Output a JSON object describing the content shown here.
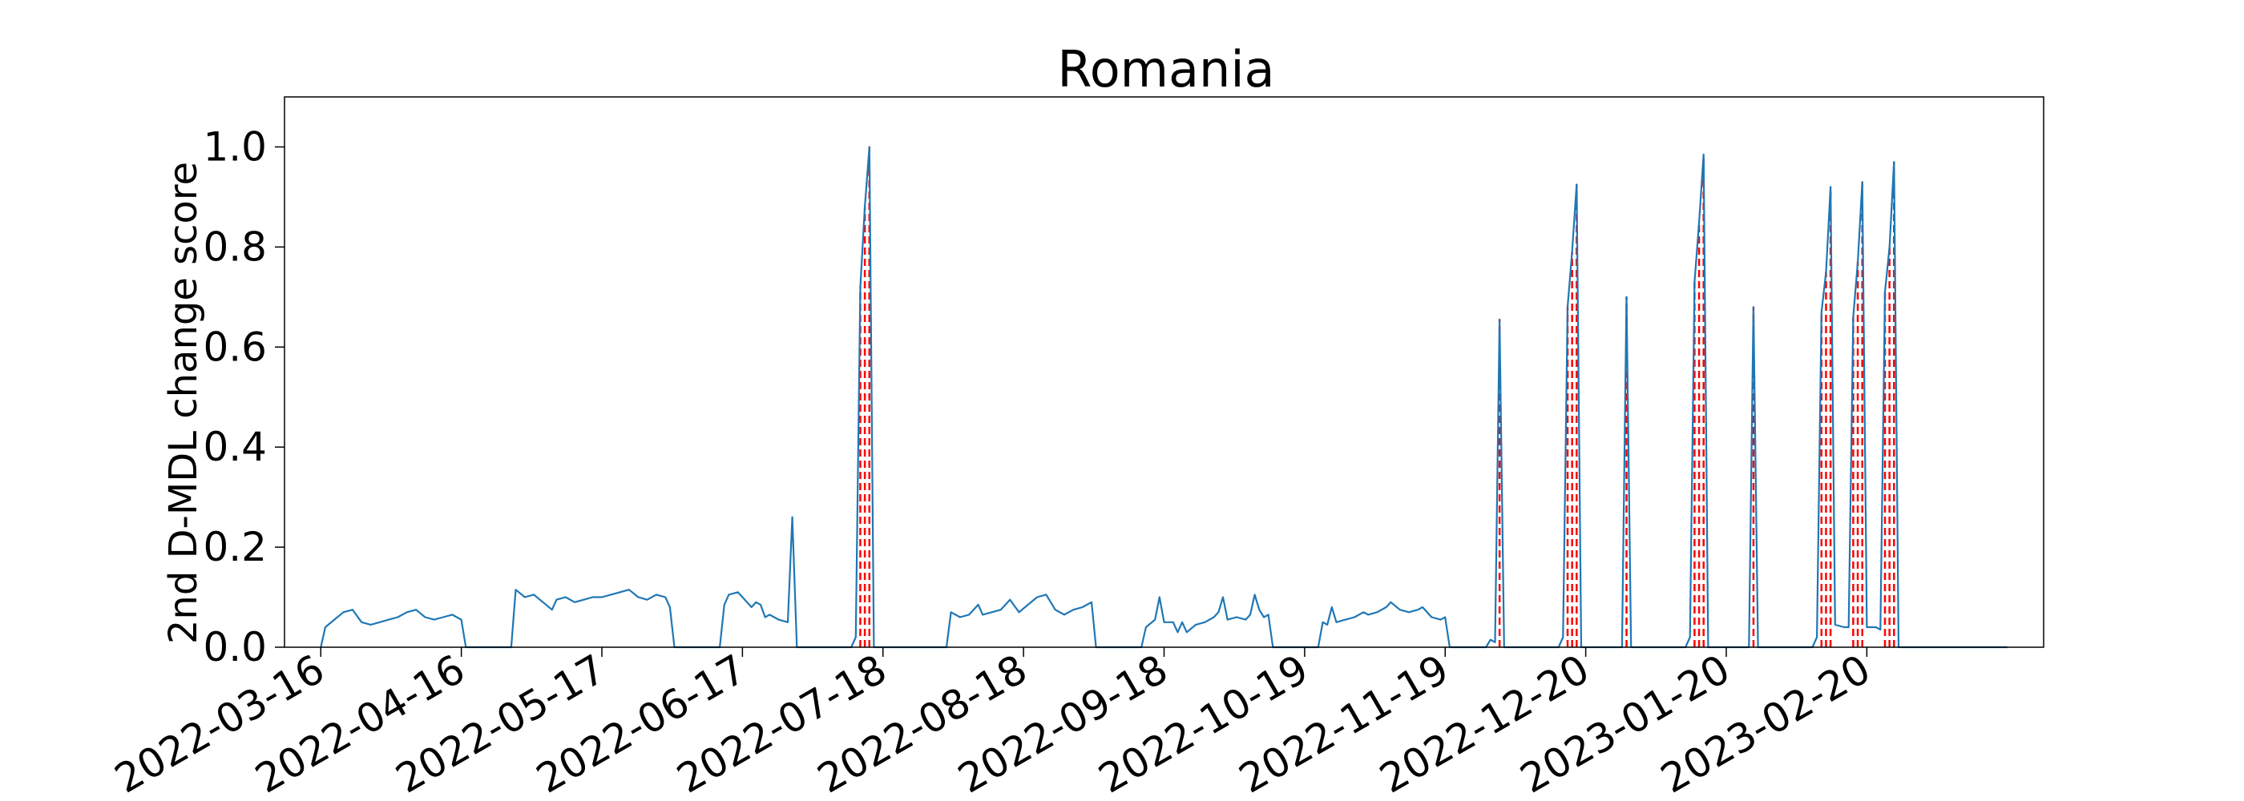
{
  "chart_data": {
    "type": "line",
    "title": "Romania",
    "xlabel": "",
    "ylabel": "2nd D-MDL change score",
    "ylim": [
      0.0,
      1.1
    ],
    "yticks": [
      0.0,
      0.2,
      0.4,
      0.6,
      0.8,
      1.0
    ],
    "ytick_labels": [
      "0.0",
      "0.2",
      "0.4",
      "0.6",
      "0.8",
      "1.0"
    ],
    "xlim": [
      "2022-03-08",
      "2023-03-31"
    ],
    "xticks": [
      "2022-03-16",
      "2022-04-16",
      "2022-05-17",
      "2022-06-17",
      "2022-07-18",
      "2022-08-18",
      "2022-09-18",
      "2022-10-19",
      "2022-11-19",
      "2022-12-20",
      "2023-01-20",
      "2023-02-20"
    ],
    "grid": false,
    "line_color": "#1f77b4",
    "alarm_color": "#ff0000",
    "series": [
      {
        "values": [
          [
            "2022-03-16",
            0.0
          ],
          [
            "2022-03-17",
            0.04
          ],
          [
            "2022-03-19",
            0.055
          ],
          [
            "2022-03-21",
            0.07
          ],
          [
            "2022-03-23",
            0.075
          ],
          [
            "2022-03-25",
            0.05
          ],
          [
            "2022-03-27",
            0.045
          ],
          [
            "2022-03-29",
            0.05
          ],
          [
            "2022-03-31",
            0.055
          ],
          [
            "2022-04-02",
            0.06
          ],
          [
            "2022-04-04",
            0.07
          ],
          [
            "2022-04-06",
            0.075
          ],
          [
            "2022-04-08",
            0.06
          ],
          [
            "2022-04-10",
            0.055
          ],
          [
            "2022-04-12",
            0.06
          ],
          [
            "2022-04-14",
            0.065
          ],
          [
            "2022-04-16",
            0.055
          ],
          [
            "2022-04-17",
            0.0
          ],
          [
            "2022-04-27",
            0.0
          ],
          [
            "2022-04-28",
            0.115
          ],
          [
            "2022-04-30",
            0.1
          ],
          [
            "2022-05-02",
            0.105
          ],
          [
            "2022-05-04",
            0.09
          ],
          [
            "2022-05-06",
            0.075
          ],
          [
            "2022-05-07",
            0.095
          ],
          [
            "2022-05-09",
            0.1
          ],
          [
            "2022-05-11",
            0.09
          ],
          [
            "2022-05-13",
            0.095
          ],
          [
            "2022-05-15",
            0.1
          ],
          [
            "2022-05-17",
            0.1
          ],
          [
            "2022-05-19",
            0.105
          ],
          [
            "2022-05-21",
            0.11
          ],
          [
            "2022-05-23",
            0.115
          ],
          [
            "2022-05-25",
            0.1
          ],
          [
            "2022-05-27",
            0.095
          ],
          [
            "2022-05-29",
            0.105
          ],
          [
            "2022-05-31",
            0.1
          ],
          [
            "2022-06-01",
            0.08
          ],
          [
            "2022-06-02",
            0.0
          ],
          [
            "2022-06-12",
            0.0
          ],
          [
            "2022-06-13",
            0.085
          ],
          [
            "2022-06-14",
            0.105
          ],
          [
            "2022-06-16",
            0.11
          ],
          [
            "2022-06-17",
            0.1
          ],
          [
            "2022-06-19",
            0.08
          ],
          [
            "2022-06-20",
            0.09
          ],
          [
            "2022-06-21",
            0.085
          ],
          [
            "2022-06-22",
            0.06
          ],
          [
            "2022-06-23",
            0.065
          ],
          [
            "2022-06-25",
            0.055
          ],
          [
            "2022-06-27",
            0.05
          ],
          [
            "2022-06-28",
            0.26
          ],
          [
            "2022-06-29",
            0.0
          ],
          [
            "2022-07-11",
            0.0
          ],
          [
            "2022-07-12",
            0.02
          ],
          [
            "2022-07-13",
            0.72
          ],
          [
            "2022-07-14",
            0.88
          ],
          [
            "2022-07-15",
            1.0
          ],
          [
            "2022-07-16",
            0.0
          ],
          [
            "2022-08-01",
            0.0
          ],
          [
            "2022-08-02",
            0.07
          ],
          [
            "2022-08-04",
            0.06
          ],
          [
            "2022-08-06",
            0.065
          ],
          [
            "2022-08-08",
            0.085
          ],
          [
            "2022-08-09",
            0.065
          ],
          [
            "2022-08-11",
            0.07
          ],
          [
            "2022-08-13",
            0.075
          ],
          [
            "2022-08-15",
            0.095
          ],
          [
            "2022-08-17",
            0.07
          ],
          [
            "2022-08-19",
            0.085
          ],
          [
            "2022-08-21",
            0.1
          ],
          [
            "2022-08-23",
            0.105
          ],
          [
            "2022-08-25",
            0.075
          ],
          [
            "2022-08-27",
            0.065
          ],
          [
            "2022-08-29",
            0.075
          ],
          [
            "2022-08-31",
            0.08
          ],
          [
            "2022-09-02",
            0.09
          ],
          [
            "2022-09-03",
            0.0
          ],
          [
            "2022-09-13",
            0.0
          ],
          [
            "2022-09-14",
            0.04
          ],
          [
            "2022-09-16",
            0.055
          ],
          [
            "2022-09-17",
            0.1
          ],
          [
            "2022-09-18",
            0.05
          ],
          [
            "2022-09-20",
            0.05
          ],
          [
            "2022-09-21",
            0.03
          ],
          [
            "2022-09-22",
            0.05
          ],
          [
            "2022-09-23",
            0.03
          ],
          [
            "2022-09-25",
            0.045
          ],
          [
            "2022-09-27",
            0.05
          ],
          [
            "2022-09-29",
            0.06
          ],
          [
            "2022-09-30",
            0.07
          ],
          [
            "2022-10-01",
            0.1
          ],
          [
            "2022-10-02",
            0.055
          ],
          [
            "2022-10-04",
            0.06
          ],
          [
            "2022-10-06",
            0.055
          ],
          [
            "2022-10-07",
            0.065
          ],
          [
            "2022-10-08",
            0.105
          ],
          [
            "2022-10-09",
            0.075
          ],
          [
            "2022-10-10",
            0.06
          ],
          [
            "2022-10-11",
            0.065
          ],
          [
            "2022-10-12",
            0.0
          ],
          [
            "2022-10-22",
            0.0
          ],
          [
            "2022-10-23",
            0.05
          ],
          [
            "2022-10-24",
            0.045
          ],
          [
            "2022-10-25",
            0.08
          ],
          [
            "2022-10-26",
            0.05
          ],
          [
            "2022-10-28",
            0.055
          ],
          [
            "2022-10-30",
            0.06
          ],
          [
            "2022-11-01",
            0.07
          ],
          [
            "2022-11-02",
            0.065
          ],
          [
            "2022-11-04",
            0.07
          ],
          [
            "2022-11-06",
            0.08
          ],
          [
            "2022-11-07",
            0.09
          ],
          [
            "2022-11-09",
            0.075
          ],
          [
            "2022-11-11",
            0.07
          ],
          [
            "2022-11-13",
            0.075
          ],
          [
            "2022-11-14",
            0.08
          ],
          [
            "2022-11-16",
            0.06
          ],
          [
            "2022-11-18",
            0.055
          ],
          [
            "2022-11-19",
            0.06
          ],
          [
            "2022-11-20",
            0.0
          ],
          [
            "2022-11-28",
            0.0
          ],
          [
            "2022-11-29",
            0.015
          ],
          [
            "2022-11-30",
            0.01
          ],
          [
            "2022-12-01",
            0.655
          ],
          [
            "2022-12-02",
            0.0
          ],
          [
            "2022-12-14",
            0.0
          ],
          [
            "2022-12-15",
            0.02
          ],
          [
            "2022-12-16",
            0.68
          ],
          [
            "2022-12-17",
            0.79
          ],
          [
            "2022-12-18",
            0.925
          ],
          [
            "2022-12-19",
            0.0
          ],
          [
            "2022-12-28",
            0.0
          ],
          [
            "2022-12-29",
            0.7
          ],
          [
            "2022-12-30",
            0.0
          ],
          [
            "2023-01-11",
            0.0
          ],
          [
            "2023-01-12",
            0.02
          ],
          [
            "2023-01-13",
            0.73
          ],
          [
            "2023-01-14",
            0.85
          ],
          [
            "2023-01-15",
            0.985
          ],
          [
            "2023-01-16",
            0.0
          ],
          [
            "2023-01-25",
            0.0
          ],
          [
            "2023-01-26",
            0.68
          ],
          [
            "2023-01-27",
            0.0
          ],
          [
            "2023-02-08",
            0.0
          ],
          [
            "2023-02-09",
            0.02
          ],
          [
            "2023-02-10",
            0.67
          ],
          [
            "2023-02-11",
            0.75
          ],
          [
            "2023-02-12",
            0.92
          ],
          [
            "2023-02-13",
            0.045
          ],
          [
            "2023-02-15",
            0.04
          ],
          [
            "2023-02-16",
            0.04
          ],
          [
            "2023-02-17",
            0.66
          ],
          [
            "2023-02-18",
            0.77
          ],
          [
            "2023-02-19",
            0.93
          ],
          [
            "2023-02-20",
            0.04
          ],
          [
            "2023-02-22",
            0.04
          ],
          [
            "2023-02-23",
            0.035
          ],
          [
            "2023-02-24",
            0.71
          ],
          [
            "2023-02-25",
            0.8
          ],
          [
            "2023-02-26",
            0.97
          ],
          [
            "2023-02-27",
            0.0
          ],
          [
            "2023-03-23",
            0.0
          ]
        ]
      }
    ],
    "alarm_dates": [
      "2022-07-13",
      "2022-07-14",
      "2022-07-15",
      "2022-12-01",
      "2022-12-16",
      "2022-12-17",
      "2022-12-18",
      "2022-12-29",
      "2023-01-13",
      "2023-01-14",
      "2023-01-15",
      "2023-01-26",
      "2023-02-10",
      "2023-02-11",
      "2023-02-12",
      "2023-02-17",
      "2023-02-18",
      "2023-02-19",
      "2023-02-24",
      "2023-02-25",
      "2023-02-26"
    ]
  }
}
